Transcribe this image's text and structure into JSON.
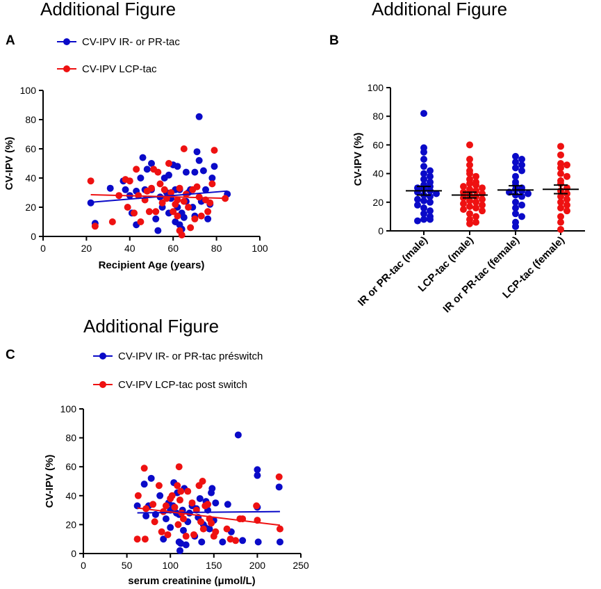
{
  "colors": {
    "blue": "#0a0ac8",
    "red": "#ee1111"
  },
  "chart_data": [
    {
      "id": "A",
      "type": "scatter",
      "panel_label": "A",
      "title": "Additional Figure",
      "xlabel": "Recipient Age (years)",
      "ylabel": "CV-IPV (%)",
      "xlim": [
        0,
        100
      ],
      "ylim": [
        0,
        100
      ],
      "xticks": [
        0,
        20,
        40,
        60,
        80,
        100
      ],
      "yticks": [
        0,
        20,
        40,
        60,
        80,
        100
      ],
      "legend": [
        "CV-IPV IR- or PR-tac",
        "CV-IPV LCP-tac"
      ],
      "series": [
        {
          "name": "CV-IPV IR- or PR-tac",
          "color": "blue",
          "points": [
            [
              22,
              23
            ],
            [
              24,
              9
            ],
            [
              31,
              33
            ],
            [
              37,
              38
            ],
            [
              38,
              32
            ],
            [
              40,
              28
            ],
            [
              41,
              16
            ],
            [
              43,
              8
            ],
            [
              43,
              31
            ],
            [
              45,
              40
            ],
            [
              46,
              54
            ],
            [
              47,
              32
            ],
            [
              48,
              46
            ],
            [
              50,
              50
            ],
            [
              50,
              32
            ],
            [
              52,
              12
            ],
            [
              53,
              4
            ],
            [
              54,
              27
            ],
            [
              55,
              20
            ],
            [
              56,
              40
            ],
            [
              57,
              30
            ],
            [
              58,
              16
            ],
            [
              58,
              42
            ],
            [
              59,
              26
            ],
            [
              60,
              49
            ],
            [
              61,
              10
            ],
            [
              61,
              32
            ],
            [
              62,
              48
            ],
            [
              62,
              20
            ],
            [
              63,
              32
            ],
            [
              63,
              8
            ],
            [
              64,
              5
            ],
            [
              64,
              16
            ],
            [
              65,
              13
            ],
            [
              66,
              24
            ],
            [
              66,
              44
            ],
            [
              67,
              30
            ],
            [
              68,
              32
            ],
            [
              69,
              20
            ],
            [
              70,
              14
            ],
            [
              70,
              44
            ],
            [
              71,
              58
            ],
            [
              72,
              82
            ],
            [
              72,
              52
            ],
            [
              73,
              24
            ],
            [
              74,
              45
            ],
            [
              75,
              32
            ],
            [
              76,
              12
            ],
            [
              77,
              22
            ],
            [
              78,
              40
            ],
            [
              79,
              48
            ],
            [
              85,
              29
            ]
          ],
          "fit": [
            [
              22,
              23.4
            ],
            [
              85,
              31.1
            ]
          ]
        },
        {
          "name": "CV-IPV LCP-tac",
          "color": "red",
          "points": [
            [
              22,
              38
            ],
            [
              24,
              7
            ],
            [
              32,
              10
            ],
            [
              35,
              28
            ],
            [
              38,
              39
            ],
            [
              39,
              20
            ],
            [
              40,
              38
            ],
            [
              42,
              16
            ],
            [
              43,
              46
            ],
            [
              44,
              28
            ],
            [
              45,
              10
            ],
            [
              47,
              25
            ],
            [
              48,
              31
            ],
            [
              49,
              17
            ],
            [
              50,
              33
            ],
            [
              51,
              46
            ],
            [
              52,
              17
            ],
            [
              53,
              44
            ],
            [
              54,
              36
            ],
            [
              55,
              23
            ],
            [
              56,
              32
            ],
            [
              57,
              26
            ],
            [
              58,
              50
            ],
            [
              59,
              30
            ],
            [
              60,
              17
            ],
            [
              61,
              22
            ],
            [
              62,
              14
            ],
            [
              62,
              25
            ],
            [
              63,
              4
            ],
            [
              63,
              33
            ],
            [
              64,
              1
            ],
            [
              65,
              24
            ],
            [
              65,
              60
            ],
            [
              66,
              29
            ],
            [
              67,
              20
            ],
            [
              68,
              6
            ],
            [
              69,
              32
            ],
            [
              70,
              12
            ],
            [
              71,
              34
            ],
            [
              72,
              27
            ],
            [
              73,
              14
            ],
            [
              75,
              25
            ],
            [
              76,
              17
            ],
            [
              77,
              23
            ],
            [
              78,
              36
            ],
            [
              79,
              59
            ],
            [
              84,
              26
            ]
          ],
          "fit": [
            [
              22,
              28.6
            ],
            [
              85,
              26.1
            ]
          ]
        }
      ]
    },
    {
      "id": "B",
      "type": "scatter",
      "panel_label": "B",
      "title": "Additional Figure",
      "xlabel": "",
      "ylabel": "CV-IPV (%)",
      "ylim": [
        0,
        100
      ],
      "yticks": [
        0,
        20,
        40,
        60,
        80,
        100
      ],
      "categories": [
        "IR or PR-tac (male)",
        "LCP-tac (male)",
        "IR or PR-tac (female)",
        "LCP-tac (female)"
      ],
      "groups": [
        {
          "category": "IR or PR-tac (male)",
          "color": "blue",
          "mean": 28,
          "sem": 3,
          "values": [
            82,
            58,
            55,
            50,
            45,
            42,
            40,
            38,
            36,
            34,
            32,
            31,
            30,
            29,
            28,
            27,
            26,
            25,
            24,
            22,
            21,
            20,
            18,
            16,
            14,
            12,
            10,
            8,
            8,
            7
          ]
        },
        {
          "category": "LCP-tac (male)",
          "color": "red",
          "mean": 25,
          "sem": 2,
          "values": [
            60,
            50,
            46,
            42,
            40,
            38,
            36,
            34,
            33,
            32,
            31,
            30,
            29,
            28,
            27,
            26,
            25,
            24,
            23,
            22,
            21,
            20,
            19,
            18,
            17,
            16,
            15,
            14,
            12,
            10,
            8,
            6,
            5
          ]
        },
        {
          "category": "IR or PR-tac (female)",
          "color": "blue",
          "mean": 28.5,
          "sem": 3,
          "values": [
            52,
            50,
            48,
            46,
            44,
            42,
            38,
            34,
            32,
            30,
            29,
            28,
            27,
            26,
            25,
            24,
            20,
            18,
            16,
            12,
            10,
            6,
            3
          ]
        },
        {
          "category": "LCP-tac (female)",
          "color": "red",
          "mean": 29,
          "sem": 3,
          "values": [
            59,
            53,
            47,
            46,
            44,
            40,
            38,
            35,
            33,
            30,
            28,
            26,
            24,
            22,
            20,
            18,
            16,
            14,
            10,
            6,
            1
          ]
        }
      ]
    },
    {
      "id": "C",
      "type": "scatter",
      "panel_label": "C",
      "title": "Additional Figure",
      "xlabel": "serum creatinine (μmol/L)",
      "ylabel": "CV-IPV (%)",
      "xlim": [
        0,
        250
      ],
      "ylim": [
        0,
        100
      ],
      "xticks": [
        0,
        50,
        100,
        150,
        200,
        250
      ],
      "yticks": [
        0,
        20,
        40,
        60,
        80,
        100
      ],
      "legend": [
        "CV-IPV IR- or PR-tac  préswitch",
        "CV-IPV LCP-tac post switch"
      ],
      "series": [
        {
          "name": "CV-IPV IR- or PR-tac  préswitch",
          "color": "blue",
          "points": [
            [
              62,
              33
            ],
            [
              70,
              48
            ],
            [
              72,
              26
            ],
            [
              75,
              33
            ],
            [
              78,
              52
            ],
            [
              83,
              27
            ],
            [
              88,
              40
            ],
            [
              92,
              10
            ],
            [
              95,
              24
            ],
            [
              98,
              35
            ],
            [
              100,
              30
            ],
            [
              100,
              18
            ],
            [
              103,
              33
            ],
            [
              104,
              49
            ],
            [
              107,
              28
            ],
            [
              108,
              42
            ],
            [
              110,
              8
            ],
            [
              110,
              27
            ],
            [
              111,
              2
            ],
            [
              112,
              7
            ],
            [
              114,
              30
            ],
            [
              115,
              16
            ],
            [
              116,
              45
            ],
            [
              118,
              6
            ],
            [
              120,
              22
            ],
            [
              122,
              28
            ],
            [
              125,
              33
            ],
            [
              128,
              12
            ],
            [
              130,
              31
            ],
            [
              132,
              25
            ],
            [
              134,
              38
            ],
            [
              136,
              8
            ],
            [
              138,
              20
            ],
            [
              140,
              18
            ],
            [
              141,
              36
            ],
            [
              143,
              30
            ],
            [
              145,
              17
            ],
            [
              147,
              42
            ],
            [
              148,
              45
            ],
            [
              150,
              23
            ],
            [
              152,
              35
            ],
            [
              160,
              8
            ],
            [
              166,
              34
            ],
            [
              170,
              15
            ],
            [
              178,
              82
            ],
            [
              183,
              9
            ],
            [
              200,
              54
            ],
            [
              200,
              58
            ],
            [
              200,
              32
            ],
            [
              201,
              8
            ],
            [
              225,
              46
            ],
            [
              226,
              8
            ]
          ],
          "fit": [
            [
              62,
              28.1
            ],
            [
              226,
              29.0
            ]
          ]
        },
        {
          "name": "CV-IPV LCP-tac post switch",
          "color": "red",
          "points": [
            [
              62,
              10
            ],
            [
              63,
              40
            ],
            [
              70,
              59
            ],
            [
              71,
              10
            ],
            [
              72,
              31
            ],
            [
              80,
              34
            ],
            [
              82,
              22
            ],
            [
              87,
              47
            ],
            [
              90,
              15
            ],
            [
              92,
              29
            ],
            [
              95,
              33
            ],
            [
              97,
              13
            ],
            [
              100,
              38
            ],
            [
              102,
              40
            ],
            [
              105,
              32
            ],
            [
              108,
              47
            ],
            [
              109,
              20
            ],
            [
              110,
              60
            ],
            [
              111,
              37
            ],
            [
              112,
              43
            ],
            [
              113,
              28
            ],
            [
              115,
              24
            ],
            [
              118,
              12
            ],
            [
              120,
              43
            ],
            [
              125,
              35
            ],
            [
              127,
              13
            ],
            [
              130,
              30
            ],
            [
              133,
              47
            ],
            [
              135,
              22
            ],
            [
              137,
              50
            ],
            [
              138,
              17
            ],
            [
              140,
              33
            ],
            [
              143,
              34
            ],
            [
              145,
              24
            ],
            [
              147,
              21
            ],
            [
              150,
              12
            ],
            [
              152,
              15
            ],
            [
              165,
              17
            ],
            [
              169,
              10
            ],
            [
              175,
              9
            ],
            [
              180,
              24
            ],
            [
              183,
              24
            ],
            [
              199,
              33
            ],
            [
              200,
              23
            ],
            [
              225,
              53
            ],
            [
              226,
              17
            ]
          ],
          "fit": [
            [
              62,
              31.5
            ],
            [
              226,
              19.6
            ]
          ]
        }
      ]
    }
  ]
}
